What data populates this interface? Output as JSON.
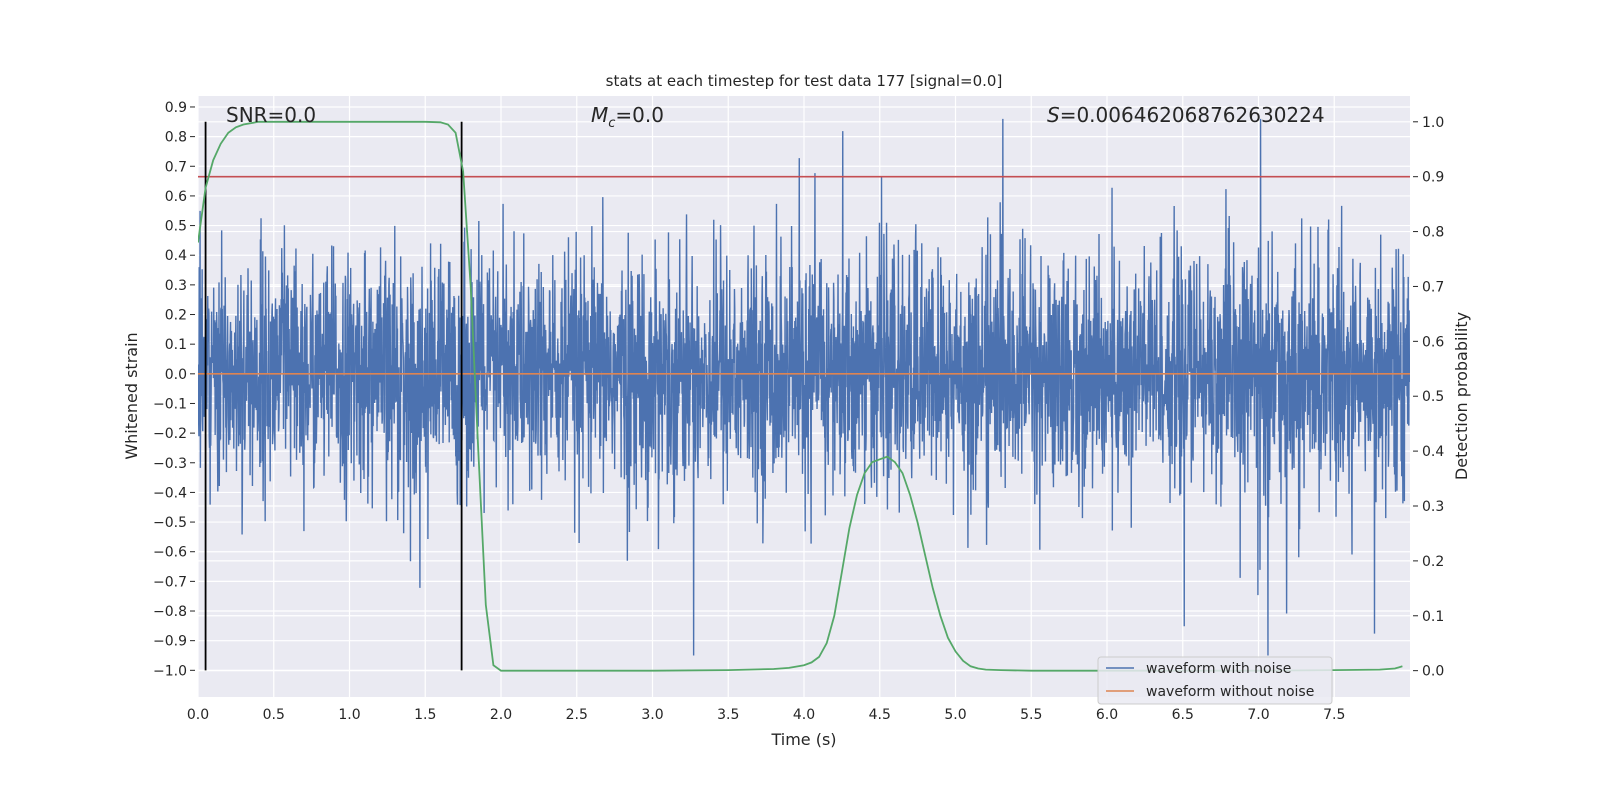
{
  "chart_data": {
    "type": "line",
    "title": "stats at each timestep for test data 177 [signal=0.0]",
    "xlabel": "Time (s)",
    "ylabel": "Whitened strain",
    "ylabel_right": "Detection probability",
    "xlim": [
      0,
      8.0
    ],
    "ylim": [
      -1.09,
      0.937
    ],
    "ylim_right": [
      -0.048,
      1.047
    ],
    "xticks": [
      "0.0",
      "0.5",
      "1.0",
      "1.5",
      "2.0",
      "2.5",
      "3.0",
      "3.5",
      "4.0",
      "4.5",
      "5.0",
      "5.5",
      "6.0",
      "6.5",
      "7.0",
      "7.5"
    ],
    "yticks": [
      "0.9",
      "0.8",
      "0.7",
      "0.6",
      "0.5",
      "0.4",
      "0.3",
      "0.2",
      "0.1",
      "0.0",
      "−0.1",
      "−0.2",
      "−0.3",
      "−0.4",
      "−0.5",
      "−0.6",
      "−0.7",
      "−0.8",
      "−0.9",
      "−1.0"
    ],
    "yticks_right": [
      "1.0",
      "0.9",
      "0.8",
      "0.7",
      "0.6",
      "0.5",
      "0.4",
      "0.3",
      "0.2",
      "0.1",
      "0.0"
    ],
    "grid": true,
    "legend": {
      "placement": "lower-right",
      "entries": [
        {
          "label": "waveform with noise",
          "color": "#4c72b0"
        },
        {
          "label": "waveform without noise",
          "color": "#dd8452"
        }
      ]
    },
    "series": [
      {
        "name": "waveform with noise",
        "axis": "left",
        "color": "#4c72b0",
        "description": "whitened noise, approx. range -0.95 to 0.86"
      },
      {
        "name": "waveform without noise",
        "axis": "left",
        "color": "#dd8452",
        "x": [
          0,
          8
        ],
        "y": [
          0,
          0
        ]
      },
      {
        "name": "detection probability",
        "axis": "right",
        "color": "#55a868",
        "x": [
          0,
          0.05,
          0.1,
          0.15,
          0.2,
          0.25,
          0.3,
          0.4,
          0.5,
          1.0,
          1.5,
          1.6,
          1.65,
          1.7,
          1.75,
          1.8,
          1.85,
          1.9,
          1.95,
          2.0,
          3.0,
          3.5,
          3.8,
          3.9,
          4.0,
          4.05,
          4.1,
          4.15,
          4.2,
          4.25,
          4.3,
          4.35,
          4.4,
          4.45,
          4.5,
          4.55,
          4.6,
          4.65,
          4.7,
          4.75,
          4.8,
          4.85,
          4.9,
          4.95,
          5.0,
          5.05,
          5.1,
          5.15,
          5.2,
          5.3,
          5.5,
          6.0,
          7.0,
          7.5,
          7.8,
          7.9,
          7.95
        ],
        "y": [
          0.78,
          0.88,
          0.93,
          0.96,
          0.98,
          0.99,
          0.995,
          1.0,
          1.0,
          1.0,
          1.0,
          0.999,
          0.995,
          0.98,
          0.91,
          0.7,
          0.4,
          0.12,
          0.01,
          0.0,
          0.0,
          0.001,
          0.003,
          0.005,
          0.01,
          0.015,
          0.025,
          0.05,
          0.1,
          0.18,
          0.26,
          0.32,
          0.36,
          0.38,
          0.385,
          0.39,
          0.38,
          0.36,
          0.32,
          0.27,
          0.21,
          0.15,
          0.1,
          0.06,
          0.035,
          0.018,
          0.008,
          0.004,
          0.002,
          0.001,
          0.0,
          0.0,
          0.0,
          0.001,
          0.002,
          0.004,
          0.008
        ]
      },
      {
        "name": "threshold",
        "axis": "right",
        "color": "#c44e52",
        "y": 0.9
      },
      {
        "name": "event markers",
        "axis": "left",
        "color": "#000000",
        "x": [
          0.05,
          1.74
        ],
        "y_range": [
          -1.0,
          0.85
        ]
      }
    ],
    "annotations": [
      {
        "text": "SNR=0.0",
        "x": 0.19,
        "y": 0.87
      },
      {
        "text_prefix": "M",
        "text_sub": "c",
        "text": "=0.0",
        "x": 2.6,
        "y": 0.87
      },
      {
        "text_prefix": "S",
        "text": "=0.006462068762630224",
        "x": 5.6,
        "y": 0.87
      }
    ]
  }
}
